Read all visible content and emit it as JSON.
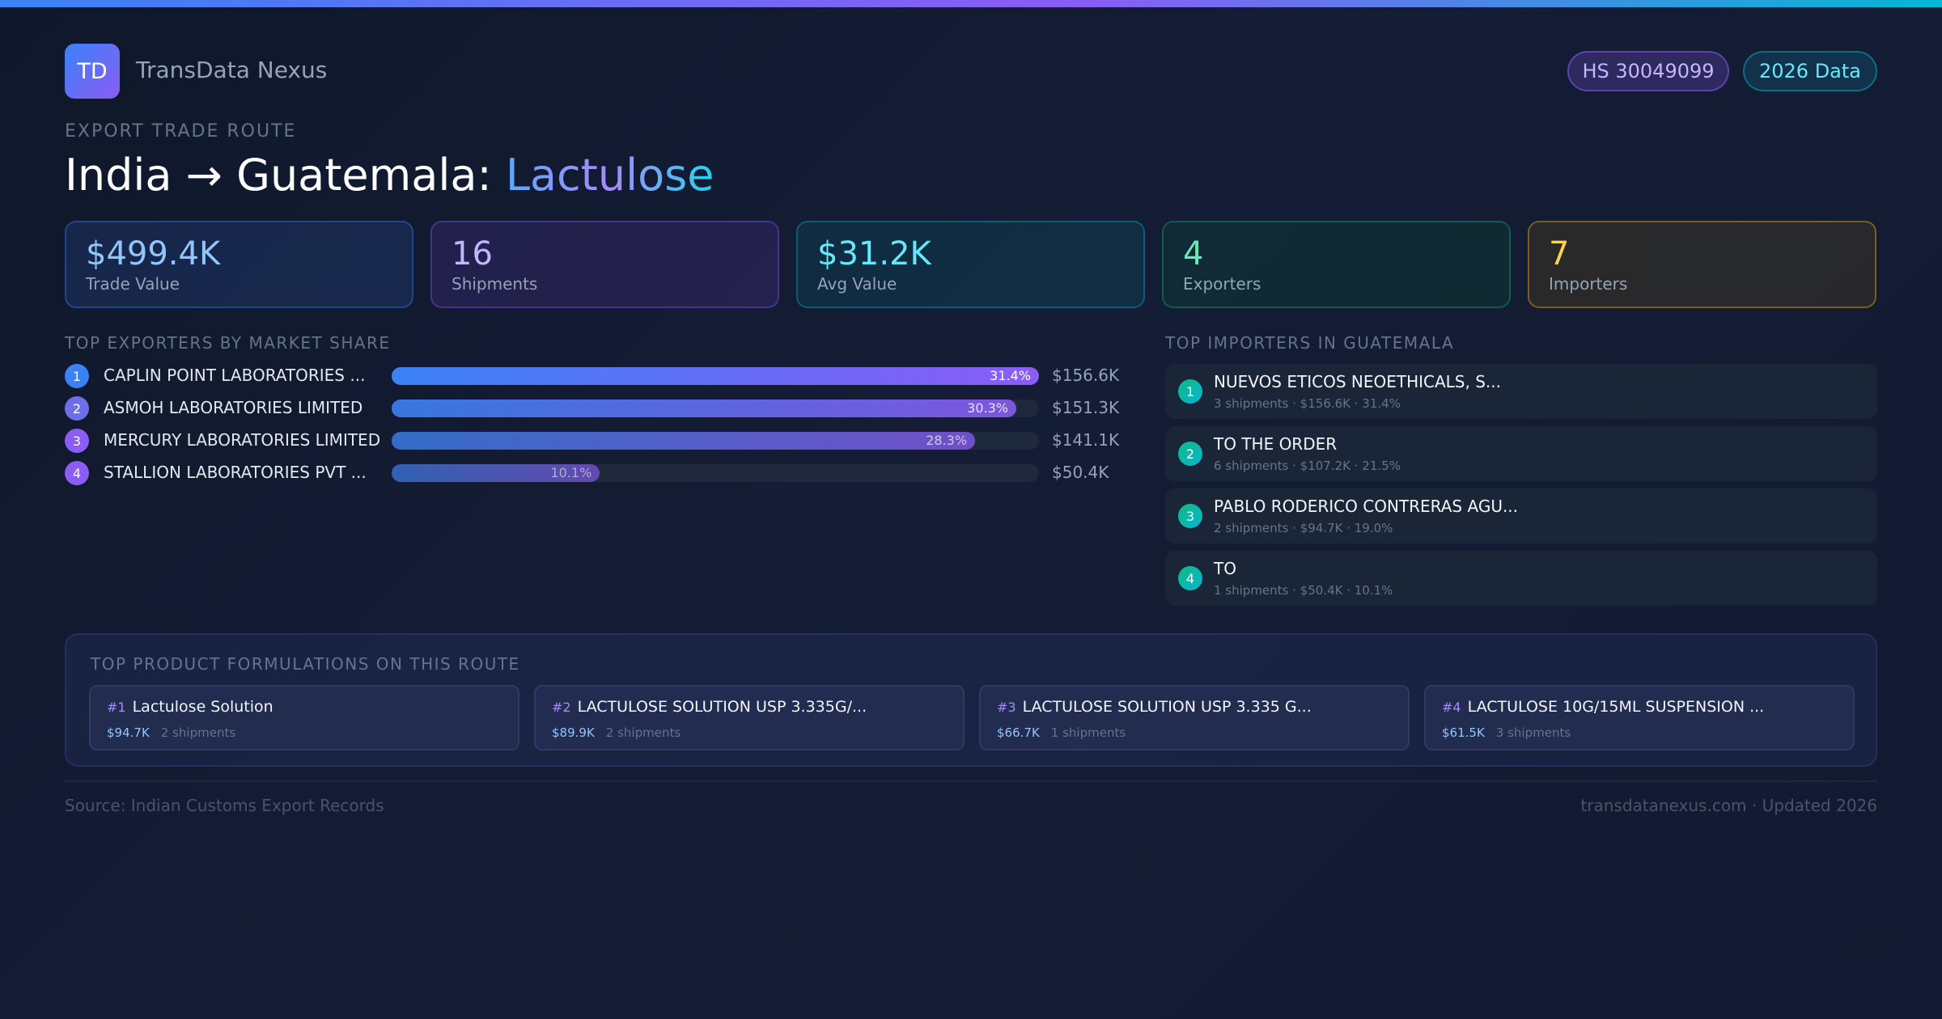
{
  "brand": {
    "logo": "TD",
    "name": "TransData Nexus"
  },
  "badges": {
    "hs": "HS 30049099",
    "year": "2026 Data"
  },
  "header": {
    "eyebrow": "EXPORT TRADE ROUTE",
    "title_route": "India → Guatemala:",
    "title_product": "Lactulose"
  },
  "stats": [
    {
      "value": "$499.4K",
      "label": "Trade Value",
      "color": "#93c5fd"
    },
    {
      "value": "16",
      "label": "Shipments",
      "color": "#c4b5fd"
    },
    {
      "value": "$31.2K",
      "label": "Avg Value",
      "color": "#67e8f9"
    },
    {
      "value": "4",
      "label": "Exporters",
      "color": "#6ee7b7"
    },
    {
      "value": "7",
      "label": "Importers",
      "color": "#fcd34d"
    }
  ],
  "exporters": {
    "title": "TOP EXPORTERS BY MARKET SHARE",
    "items": [
      {
        "rank": "1",
        "name": "CAPLIN POINT LABORATORIES ...",
        "share_label": "31.4%",
        "share": 31.4,
        "value": "$156.6K"
      },
      {
        "rank": "2",
        "name": "ASMOH LABORATORIES LIMITED",
        "share_label": "30.3%",
        "share": 30.3,
        "value": "$151.3K"
      },
      {
        "rank": "3",
        "name": "MERCURY LABORATORIES LIMITED",
        "share_label": "28.3%",
        "share": 28.3,
        "value": "$141.1K"
      },
      {
        "rank": "4",
        "name": "STALLION LABORATORIES PVT ...",
        "share_label": "10.1%",
        "share": 10.1,
        "value": "$50.4K"
      }
    ]
  },
  "importers": {
    "title": "TOP IMPORTERS IN GUATEMALA",
    "items": [
      {
        "rank": "1",
        "name": "NUEVOS ETICOS NEOETHICALS, S...",
        "sub": "3 shipments · $156.6K · 31.4%"
      },
      {
        "rank": "2",
        "name": "TO THE ORDER",
        "sub": "6 shipments · $107.2K · 21.5%"
      },
      {
        "rank": "3",
        "name": "PABLO RODERICO CONTRERAS AGU...",
        "sub": "2 shipments · $94.7K · 19.0%"
      },
      {
        "rank": "4",
        "name": "TO",
        "sub": "1 shipments · $50.4K · 10.1%"
      }
    ]
  },
  "formulations": {
    "title": "TOP PRODUCT FORMULATIONS ON THIS ROUTE",
    "items": [
      {
        "rank": "#1",
        "name": "Lactulose Solution",
        "value": "$94.7K",
        "shipments": "2 shipments"
      },
      {
        "rank": "#2",
        "name": "LACTULOSE SOLUTION USP 3.335G/...",
        "value": "$89.9K",
        "shipments": "2 shipments"
      },
      {
        "rank": "#3",
        "name": "LACTULOSE SOLUTION USP 3.335 G...",
        "value": "$66.7K",
        "shipments": "1 shipments"
      },
      {
        "rank": "#4",
        "name": "LACTULOSE 10G/15ML SUSPENSION ...",
        "value": "$61.5K",
        "shipments": "3 shipments"
      }
    ]
  },
  "footer": {
    "source": "Source: Indian Customs Export Records",
    "site": "transdatanexus.com · Updated 2026"
  }
}
